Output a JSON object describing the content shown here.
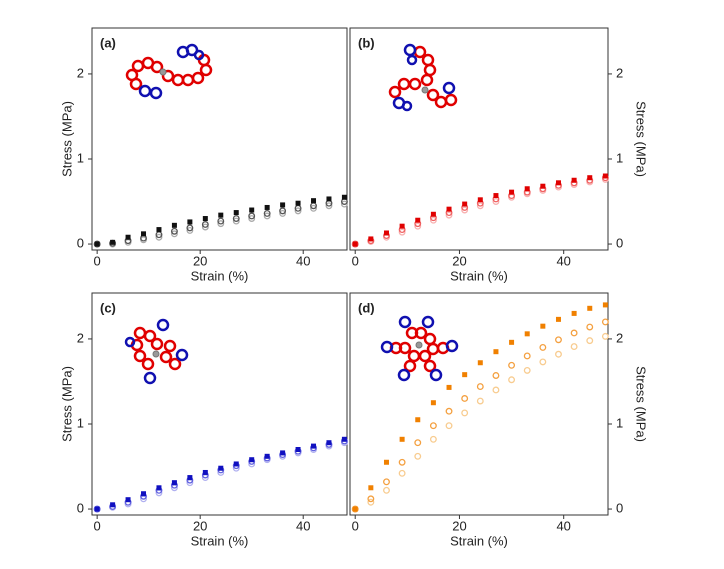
{
  "chart_data": [
    {
      "type": "scatter",
      "panel_label": "(a)",
      "x_label": "Strain (%)",
      "y_label": "Stress (MPa)",
      "y_axis_side": "left",
      "xlim": [
        -1,
        48.5
      ],
      "ylim": [
        -0.07,
        2.54
      ],
      "xticks": [
        0,
        20,
        40
      ],
      "yticks": [
        0,
        1,
        2
      ],
      "grid": false,
      "x": [
        0,
        3,
        6,
        9,
        12,
        15,
        18,
        21,
        24,
        27,
        30,
        33,
        36,
        39,
        42,
        45,
        48
      ],
      "series": [
        {
          "color": "#111111",
          "values": [
            0,
            0.02,
            0.08,
            0.12,
            0.17,
            0.22,
            0.26,
            0.3,
            0.34,
            0.37,
            0.4,
            0.43,
            0.46,
            0.48,
            0.51,
            0.53,
            0.55
          ]
        },
        {
          "color": "#555555",
          "values": [
            0,
            0.01,
            0.04,
            0.07,
            0.11,
            0.15,
            0.19,
            0.23,
            0.27,
            0.3,
            0.33,
            0.36,
            0.39,
            0.42,
            0.45,
            0.48,
            0.5
          ]
        },
        {
          "color": "#aaaaaa",
          "values": [
            0,
            0,
            0.02,
            0.05,
            0.08,
            0.12,
            0.16,
            0.2,
            0.24,
            0.27,
            0.3,
            0.33,
            0.36,
            0.39,
            0.42,
            0.45,
            0.47
          ]
        }
      ]
    },
    {
      "type": "scatter",
      "panel_label": "(b)",
      "x_label": "Strain (%)",
      "y_label": "Stress (MPa)",
      "y_axis_side": "right",
      "xlim": [
        -1,
        48.5
      ],
      "ylim": [
        -0.07,
        2.54
      ],
      "xticks": [
        0,
        20,
        40
      ],
      "yticks": [
        0,
        1,
        2
      ],
      "grid": false,
      "x": [
        0,
        3,
        6,
        9,
        12,
        15,
        18,
        21,
        24,
        27,
        30,
        33,
        36,
        39,
        42,
        45,
        48
      ],
      "series": [
        {
          "color": "#e00000",
          "values": [
            0,
            0.06,
            0.13,
            0.21,
            0.28,
            0.35,
            0.41,
            0.47,
            0.52,
            0.57,
            0.61,
            0.65,
            0.68,
            0.72,
            0.75,
            0.78,
            0.8
          ]
        },
        {
          "color": "#f06060",
          "values": [
            0,
            0.04,
            0.1,
            0.17,
            0.24,
            0.31,
            0.37,
            0.43,
            0.48,
            0.53,
            0.57,
            0.61,
            0.65,
            0.69,
            0.72,
            0.75,
            0.78
          ]
        },
        {
          "color": "#f8b0b0",
          "values": [
            0,
            0.03,
            0.08,
            0.14,
            0.21,
            0.28,
            0.34,
            0.4,
            0.45,
            0.5,
            0.55,
            0.59,
            0.63,
            0.67,
            0.7,
            0.73,
            0.76
          ]
        }
      ]
    },
    {
      "type": "scatter",
      "panel_label": "(c)",
      "x_label": "Strain (%)",
      "y_label": "Stress (MPa)",
      "y_axis_side": "left",
      "xlim": [
        -1,
        48.5
      ],
      "ylim": [
        -0.07,
        2.54
      ],
      "xticks": [
        0,
        20,
        40
      ],
      "yticks": [
        0,
        1,
        2
      ],
      "grid": false,
      "x": [
        0,
        3,
        6,
        9,
        12,
        15,
        18,
        21,
        24,
        27,
        30,
        33,
        36,
        39,
        42,
        45,
        48
      ],
      "series": [
        {
          "color": "#1010c0",
          "values": [
            0,
            0.05,
            0.11,
            0.18,
            0.25,
            0.31,
            0.37,
            0.43,
            0.48,
            0.53,
            0.58,
            0.62,
            0.66,
            0.7,
            0.74,
            0.78,
            0.82
          ]
        },
        {
          "color": "#6060e0",
          "values": [
            0,
            0.03,
            0.08,
            0.15,
            0.22,
            0.28,
            0.34,
            0.4,
            0.46,
            0.51,
            0.56,
            0.6,
            0.64,
            0.68,
            0.72,
            0.76,
            0.8
          ]
        },
        {
          "color": "#b0b0f0",
          "values": [
            0,
            0.02,
            0.06,
            0.12,
            0.19,
            0.25,
            0.31,
            0.37,
            0.43,
            0.48,
            0.53,
            0.58,
            0.62,
            0.66,
            0.7,
            0.74,
            0.78
          ]
        }
      ]
    },
    {
      "type": "scatter",
      "panel_label": "(d)",
      "x_label": "Strain (%)",
      "y_label": "Stress (MPa)",
      "y_axis_side": "right",
      "xlim": [
        -1,
        48.5
      ],
      "ylim": [
        -0.07,
        2.54
      ],
      "xticks": [
        0,
        20,
        40
      ],
      "yticks": [
        0,
        1,
        2
      ],
      "grid": false,
      "x": [
        0,
        3,
        6,
        9,
        12,
        15,
        18,
        21,
        24,
        27,
        30,
        33,
        36,
        39,
        42,
        45,
        48
      ],
      "series": [
        {
          "color": "#f08000",
          "values": [
            0,
            0.25,
            0.55,
            0.82,
            1.05,
            1.25,
            1.43,
            1.58,
            1.72,
            1.85,
            1.96,
            2.06,
            2.15,
            2.23,
            2.3,
            2.36,
            2.4
          ]
        },
        {
          "color": "#f4a040",
          "values": [
            0,
            0.12,
            0.32,
            0.55,
            0.78,
            0.98,
            1.15,
            1.3,
            1.44,
            1.57,
            1.69,
            1.8,
            1.9,
            1.99,
            2.07,
            2.14,
            2.2
          ]
        },
        {
          "color": "#f8cc90",
          "values": [
            0,
            0.08,
            0.22,
            0.42,
            0.62,
            0.82,
            0.98,
            1.13,
            1.27,
            1.4,
            1.52,
            1.63,
            1.73,
            1.82,
            1.91,
            1.98,
            2.03
          ]
        }
      ]
    }
  ]
}
